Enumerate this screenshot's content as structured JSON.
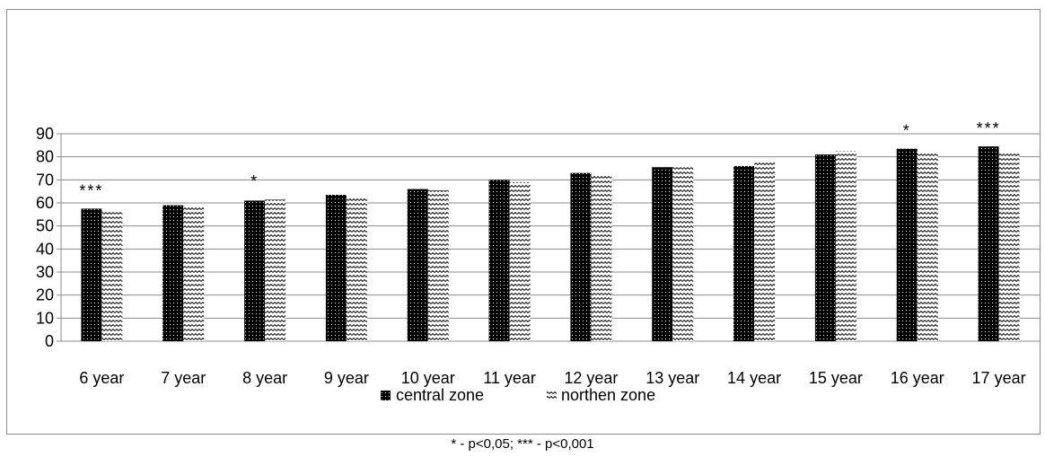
{
  "chart_data": {
    "type": "bar",
    "title": "",
    "xlabel": "",
    "ylabel": "",
    "ylim": [
      0,
      90
    ],
    "yticks": [
      0,
      10,
      20,
      30,
      40,
      50,
      60,
      70,
      80,
      90
    ],
    "grid": true,
    "legend_position": "bottom",
    "categories": [
      "6 year",
      "7 year",
      "8 year",
      "9 year",
      "10 year",
      "11 year",
      "12 year",
      "13 year",
      "14 year",
      "15 year",
      "16 year",
      "17 year"
    ],
    "series": [
      {
        "name": "central zone",
        "pattern": "dots-on-black",
        "color": "#000000",
        "values": [
          57.5,
          59,
          61,
          63.5,
          66,
          70,
          73,
          75.5,
          76,
          81,
          83.5,
          84.5
        ]
      },
      {
        "name": "northen zone",
        "pattern": "zigzag",
        "color": "#ffffff",
        "values": [
          56,
          58.5,
          61.5,
          62.5,
          65.5,
          69,
          72,
          75.5,
          77.5,
          82.5,
          82,
          81.5
        ]
      }
    ],
    "annotations": [
      {
        "category": "6 year",
        "text": "***"
      },
      {
        "category": "8 year",
        "text": "*"
      },
      {
        "category": "16 year",
        "text": "*"
      },
      {
        "category": "17 year",
        "text": "***"
      }
    ]
  },
  "footnote": "* - p<0,05; *** - p<0,001"
}
